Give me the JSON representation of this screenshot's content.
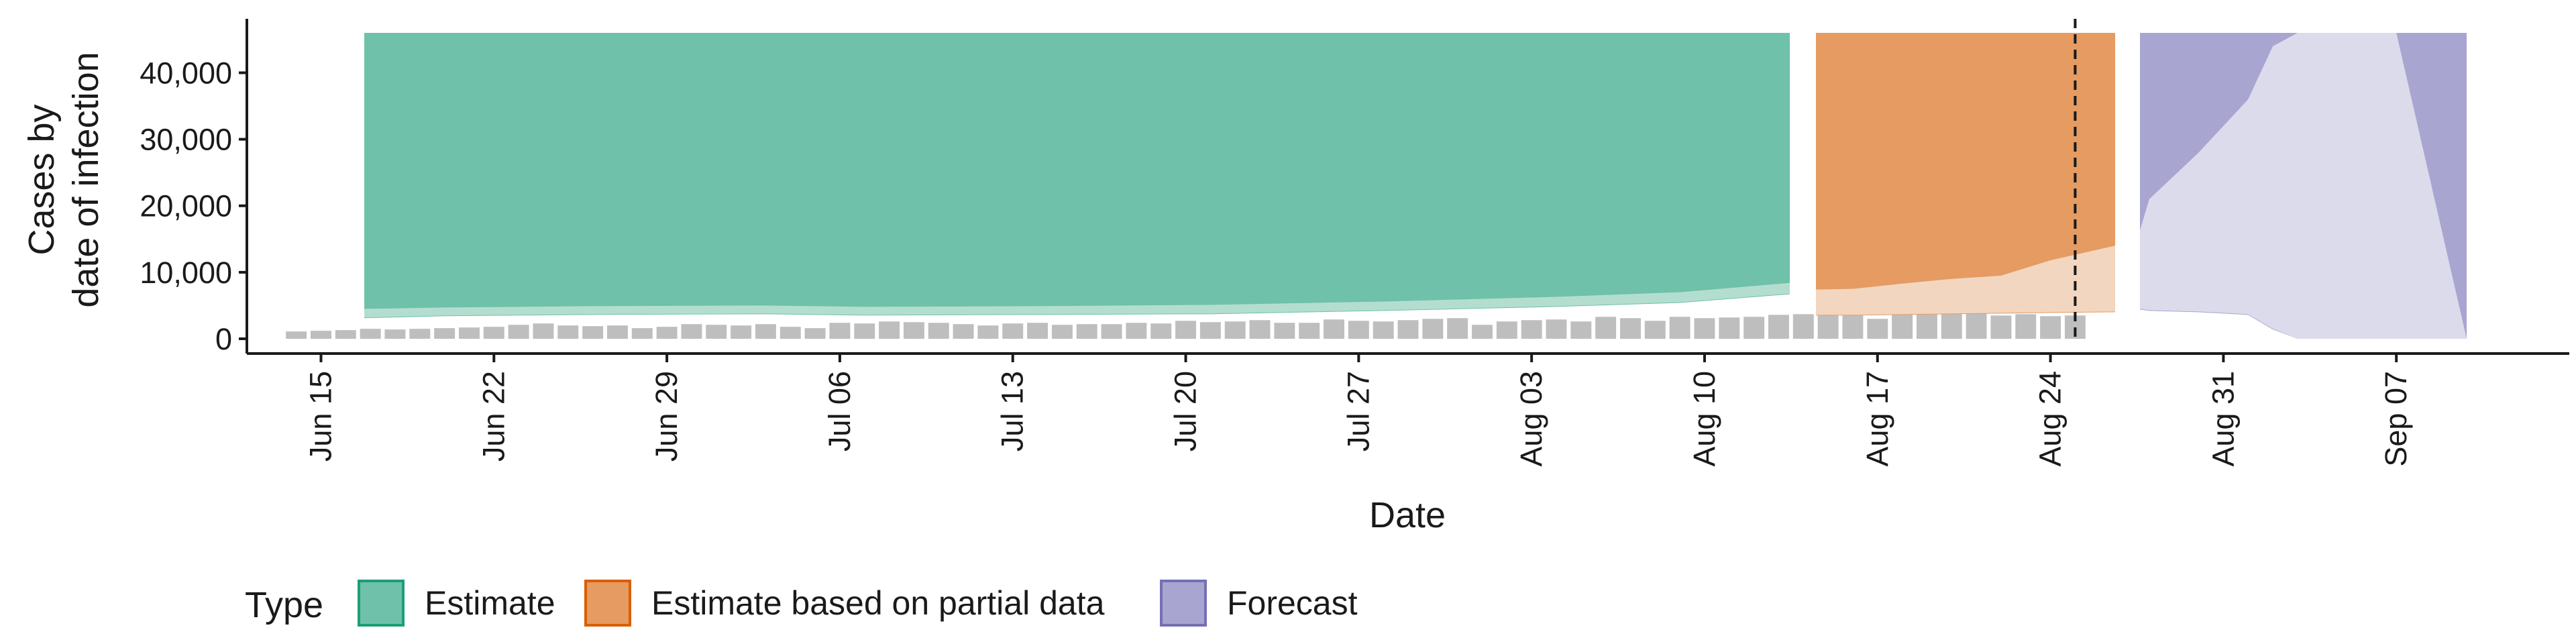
{
  "chart_data": {
    "type": "area",
    "xlabel": "Date",
    "ylabel": [
      "Cases by",
      "date of infection"
    ],
    "ylim": [
      0,
      46000
    ],
    "xlim": [
      "2020-06-12",
      "2020-09-14"
    ],
    "y_ticks": [
      0,
      10000,
      20000,
      30000,
      40000
    ],
    "y_tick_labels": [
      "0",
      "10,000",
      "20,000",
      "30,000",
      "40,000"
    ],
    "x_ticks": [
      "2020-06-15",
      "2020-06-22",
      "2020-06-29",
      "2020-07-06",
      "2020-07-13",
      "2020-07-20",
      "2020-07-27",
      "2020-08-03",
      "2020-08-10",
      "2020-08-17",
      "2020-08-24",
      "2020-08-31",
      "2020-09-07"
    ],
    "x_tick_labels": [
      "Jun 15",
      "Jun 22",
      "Jun 29",
      "Jul 06",
      "Jul 13",
      "Jul 20",
      "Jul 27",
      "Aug 03",
      "Aug 10",
      "Aug 17",
      "Aug 24",
      "Aug 31",
      "Sep 07"
    ],
    "vline": "2020-08-25",
    "grid": false,
    "legend": {
      "title": "Type",
      "position": "bottom-left",
      "entries": [
        {
          "label": "Estimate",
          "color": "#6FC1A9",
          "stroke": "#1B9E77"
        },
        {
          "label": "Estimate based on partial data",
          "color": "#E59B61",
          "stroke": "#D95F02"
        },
        {
          "label": "Forecast",
          "color": "#A8A5D0",
          "stroke": "#7570B3"
        }
      ]
    },
    "reported_cases": {
      "color": "#BEBEBE",
      "dates": [
        "2020-06-14",
        "2020-06-15",
        "2020-06-16",
        "2020-06-17",
        "2020-06-18",
        "2020-06-19",
        "2020-06-20",
        "2020-06-21",
        "2020-06-22",
        "2020-06-23",
        "2020-06-24",
        "2020-06-25",
        "2020-06-26",
        "2020-06-27",
        "2020-06-28",
        "2020-06-29",
        "2020-06-30",
        "2020-07-01",
        "2020-07-02",
        "2020-07-03",
        "2020-07-04",
        "2020-07-05",
        "2020-07-06",
        "2020-07-07",
        "2020-07-08",
        "2020-07-09",
        "2020-07-10",
        "2020-07-11",
        "2020-07-12",
        "2020-07-13",
        "2020-07-14",
        "2020-07-15",
        "2020-07-16",
        "2020-07-17",
        "2020-07-18",
        "2020-07-19",
        "2020-07-20",
        "2020-07-21",
        "2020-07-22",
        "2020-07-23",
        "2020-07-24",
        "2020-07-25",
        "2020-07-26",
        "2020-07-27",
        "2020-07-28",
        "2020-07-29",
        "2020-07-30",
        "2020-07-31",
        "2020-08-01",
        "2020-08-02",
        "2020-08-03",
        "2020-08-04",
        "2020-08-05",
        "2020-08-06",
        "2020-08-07",
        "2020-08-08",
        "2020-08-09",
        "2020-08-10",
        "2020-08-11",
        "2020-08-12",
        "2020-08-13",
        "2020-08-14",
        "2020-08-15",
        "2020-08-16",
        "2020-08-17",
        "2020-08-18",
        "2020-08-19",
        "2020-08-20",
        "2020-08-21",
        "2020-08-22",
        "2020-08-23",
        "2020-08-24",
        "2020-08-25"
      ],
      "values": [
        1100,
        1200,
        1300,
        1500,
        1400,
        1500,
        1600,
        1700,
        1800,
        2100,
        2300,
        2000,
        1900,
        2000,
        1600,
        1800,
        2200,
        2100,
        2000,
        2200,
        1800,
        1600,
        2400,
        2300,
        2600,
        2500,
        2400,
        2200,
        2000,
        2300,
        2400,
        2100,
        2200,
        2200,
        2400,
        2300,
        2700,
        2500,
        2600,
        2800,
        2400,
        2400,
        2900,
        2700,
        2600,
        2800,
        3000,
        3100,
        2100,
        2600,
        2800,
        2900,
        2600,
        3300,
        3100,
        2700,
        3300,
        3100,
        3200,
        3300,
        3600,
        3700,
        4000,
        4100,
        3000,
        4300,
        4000,
        3900,
        4000,
        3500,
        3700,
        3400,
        3500
      ]
    },
    "series": [
      {
        "name": "Estimate",
        "dates": [
          "2020-06-16",
          "2020-06-20",
          "2020-06-26",
          "2020-07-03",
          "2020-07-07",
          "2020-07-14",
          "2020-07-21",
          "2020-07-28",
          "2020-08-04",
          "2020-08-09",
          "2020-08-13"
        ],
        "median": [
          3300,
          3600,
          3800,
          3900,
          3700,
          3800,
          3900,
          4400,
          5000,
          5700,
          7000
        ],
        "lower_50": [
          3200,
          3500,
          3700,
          3800,
          3600,
          3700,
          3800,
          4300,
          4900,
          5500,
          6800
        ],
        "upper_50": [
          4500,
          4700,
          4900,
          5000,
          4800,
          4900,
          5100,
          5600,
          6300,
          7000,
          8400
        ],
        "lower_90": [
          3100,
          3400,
          3600,
          3700,
          3500,
          3600,
          3700,
          4200,
          4800,
          5400,
          6700
        ],
        "upper_90": [
          46000,
          46000,
          46000,
          46000,
          46000,
          46000,
          46000,
          46000,
          46000,
          46000,
          46000
        ]
      },
      {
        "name": "Estimate based on partial data",
        "dates": [
          "2020-08-14",
          "2020-08-16",
          "2020-08-18",
          "2020-08-20",
          "2020-08-22",
          "2020-08-24",
          "2020-08-25"
        ],
        "lower_50": [
          3600,
          3600,
          3700,
          3800,
          3900,
          4000,
          4100
        ],
        "upper_50": [
          7400,
          7500,
          8300,
          9000,
          9500,
          11800,
          14000
        ],
        "lower_90": [
          3500,
          3500,
          3600,
          3700,
          3800,
          3900,
          4000
        ],
        "upper_90": [
          46000,
          46000,
          46000,
          46000,
          46000,
          46000,
          46000
        ]
      },
      {
        "name": "Forecast",
        "dates": [
          "2020-08-26",
          "2020-08-28",
          "2020-08-30",
          "2020-09-01",
          "2020-09-02",
          "2020-09-03",
          "2020-09-04",
          "2020-09-07",
          "2020-09-08"
        ],
        "lower_50": [
          4500,
          4300,
          4100,
          3700,
          1500,
          0,
          0,
          0,
          0
        ],
        "upper_50": [
          16300,
          21000,
          28000,
          36000,
          44000,
          46000,
          46000,
          46000,
          0
        ],
        "lower_90": [
          4400,
          4200,
          4000,
          3600,
          1400,
          0,
          0,
          0,
          0
        ],
        "upper_90": [
          46000,
          46000,
          46000,
          46000,
          46000,
          46000,
          46000,
          46000,
          46000
        ]
      }
    ]
  }
}
